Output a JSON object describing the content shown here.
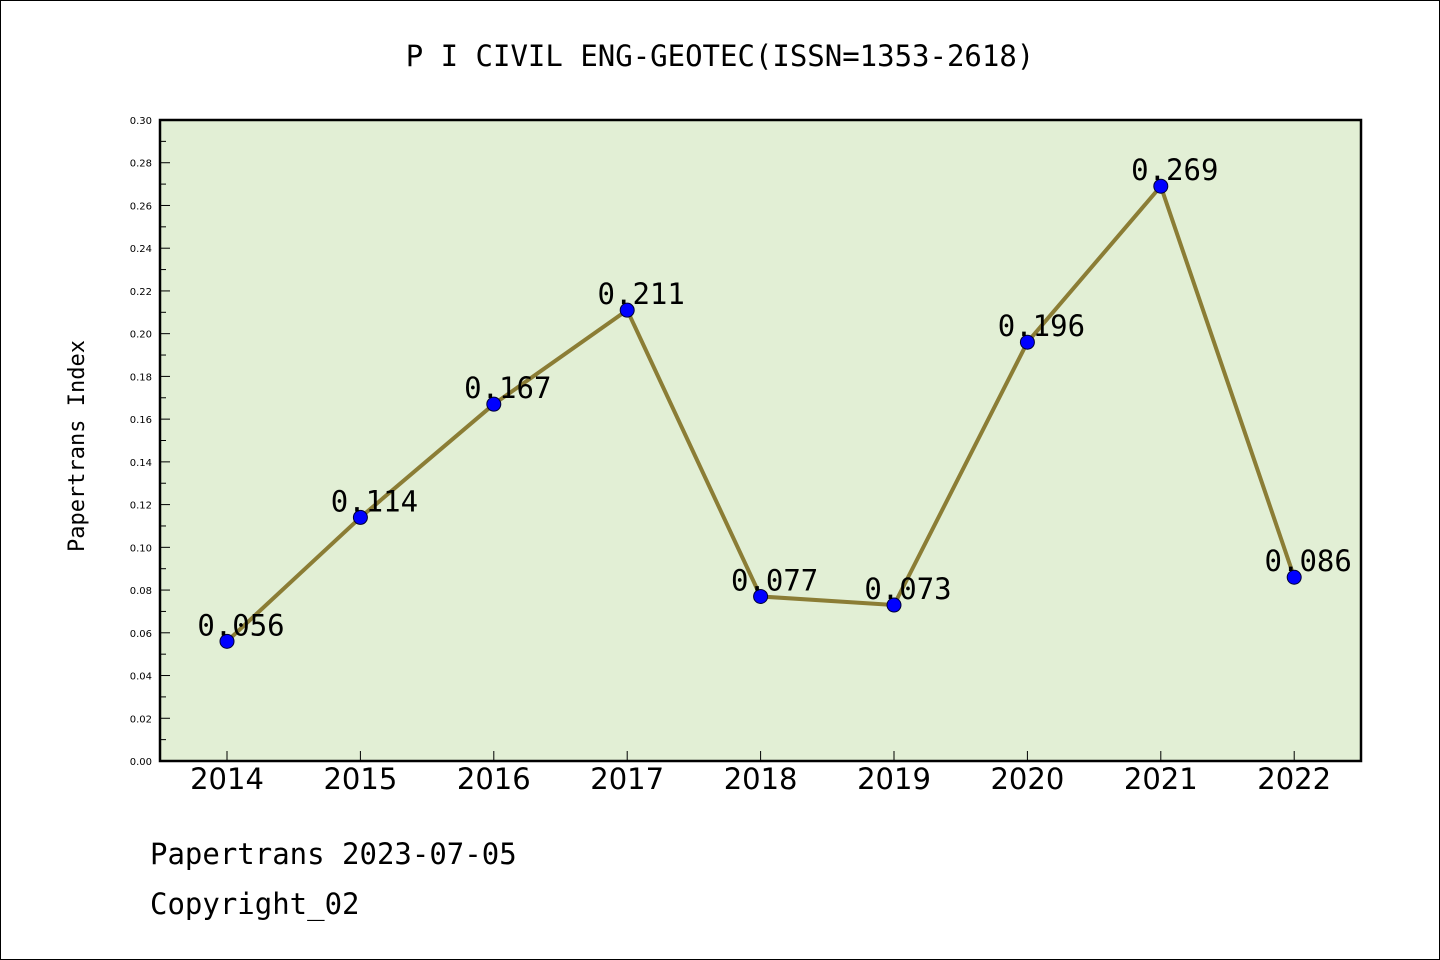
{
  "chart_data": {
    "type": "line",
    "title": "P I CIVIL ENG-GEOTEC(ISSN=1353-2618)",
    "xlabel": "",
    "ylabel": "Papertrans Index",
    "categories": [
      "2014",
      "2015",
      "2016",
      "2017",
      "2018",
      "2019",
      "2020",
      "2021",
      "2022"
    ],
    "values": [
      0.056,
      0.114,
      0.167,
      0.211,
      0.077,
      0.073,
      0.196,
      0.269,
      0.086
    ],
    "data_labels": [
      "0.056",
      "0.114",
      "0.167",
      "0.211",
      "0.077",
      "0.073",
      "0.196",
      "0.269",
      "0.086"
    ],
    "ylim": [
      0,
      0.3
    ],
    "yticks": [
      "0.00",
      "0.02",
      "0.04",
      "0.06",
      "0.08",
      "0.10",
      "0.12",
      "0.14",
      "0.16",
      "0.18",
      "0.20",
      "0.22",
      "0.24",
      "0.26",
      "0.28",
      "0.30"
    ],
    "grid": false,
    "line_color": "#8b7d35",
    "marker_color": "#0000ff",
    "plot_background": "#e2efd5"
  },
  "footer": {
    "line1": "Papertrans 2023-07-05",
    "line2": "Copyright_02"
  }
}
